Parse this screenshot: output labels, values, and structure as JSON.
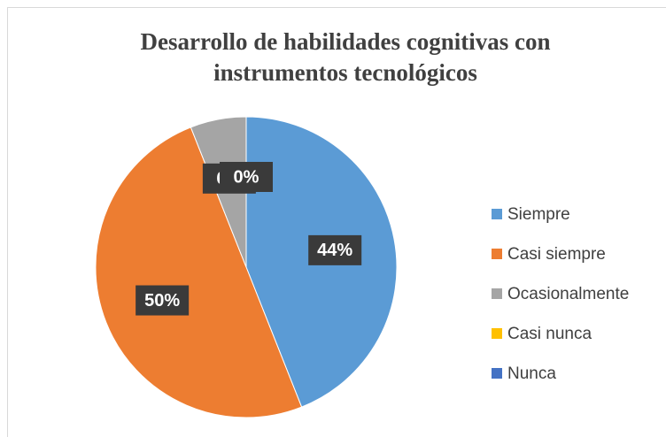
{
  "chart_data": {
    "type": "pie",
    "title": "Desarrollo de habilidades cognitivas con instrumentos tecnológicos",
    "categories": [
      "Siempre",
      "Casi siempre",
      "Ocasionalmente",
      "Casi nunca",
      "Nunca"
    ],
    "values": [
      44,
      50,
      6,
      0,
      0
    ],
    "value_labels": [
      "44%",
      "50%",
      "6%",
      "0%",
      "0%"
    ],
    "colors": [
      "#5b9bd5",
      "#ed7d31",
      "#a5a5a5",
      "#ffc000",
      "#4472c4"
    ],
    "legend": "right"
  }
}
